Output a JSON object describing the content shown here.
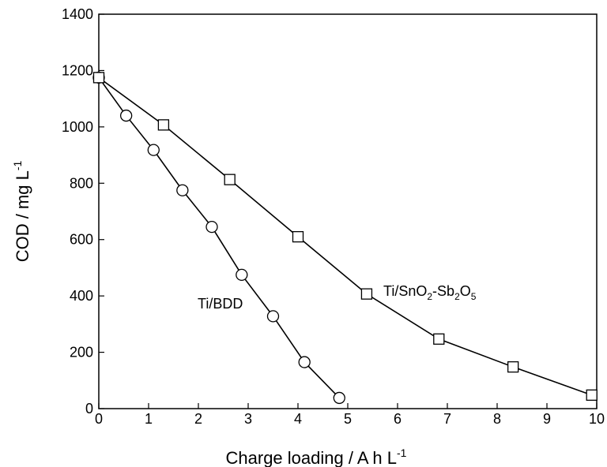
{
  "chart_data": {
    "type": "scatter",
    "xlabel": "Charge loading / A h L",
    "xlabel_sup": "-1",
    "ylabel": "COD / mg L",
    "ylabel_sup": "-1",
    "xlim": [
      0,
      10
    ],
    "ylim": [
      0,
      1400
    ],
    "xticks": [
      0,
      1,
      2,
      3,
      4,
      5,
      6,
      7,
      8,
      9,
      10
    ],
    "yticks": [
      0,
      200,
      400,
      600,
      800,
      1000,
      1200,
      1400
    ],
    "grid": false,
    "legend": "none",
    "series": [
      {
        "name": "Ti/BDD",
        "marker": "circle",
        "color": "#000000",
        "x": [
          0,
          0.55,
          1.1,
          1.68,
          2.27,
          2.87,
          3.5,
          4.13,
          4.83
        ],
        "y": [
          1175,
          1040,
          918,
          775,
          645,
          475,
          328,
          165,
          38
        ]
      },
      {
        "name": "Ti/SnO2-Sb2O5",
        "marker": "square",
        "color": "#000000",
        "x": [
          0,
          1.3,
          2.63,
          4.0,
          5.38,
          6.83,
          8.32,
          9.9
        ],
        "y": [
          1175,
          1007,
          813,
          610,
          407,
          247,
          148,
          48
        ]
      }
    ]
  },
  "annotations": {
    "bdd": {
      "main": "Ti/BDD"
    },
    "sno2": {
      "p1": "Ti/SnO",
      "s1": "2",
      "p2": "-Sb",
      "s2": "2",
      "p3": "O",
      "s3": "5"
    }
  }
}
